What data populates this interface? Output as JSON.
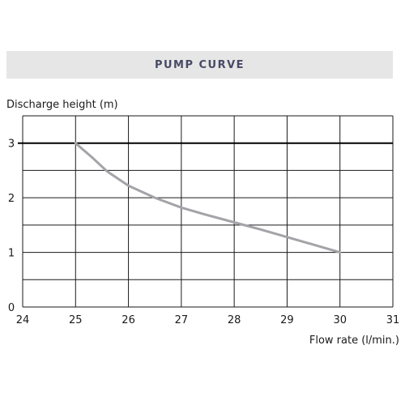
{
  "title": "PUMP CURVE",
  "chart_data": {
    "type": "line",
    "title": "PUMP CURVE",
    "xlabel": "Flow rate (l/min.)",
    "ylabel": "Discharge height (m)",
    "xlim": [
      24,
      31
    ],
    "ylim": [
      0,
      3.5
    ],
    "x_ticks": [
      "24",
      "25",
      "26",
      "27",
      "28",
      "29",
      "30",
      "31"
    ],
    "y_ticks": [
      "0",
      "1",
      "2",
      "3"
    ],
    "grid": true,
    "reference_line_y": 3,
    "series": [
      {
        "color": "#a3a3a8",
        "x": [
          25.0,
          25.3,
          25.6,
          26.0,
          26.5,
          27.0,
          27.5,
          28.0,
          28.5,
          29.0,
          29.5,
          30.0
        ],
        "y": [
          3.0,
          2.75,
          2.48,
          2.22,
          2.0,
          1.82,
          1.68,
          1.55,
          1.42,
          1.28,
          1.14,
          1.0
        ]
      }
    ]
  }
}
